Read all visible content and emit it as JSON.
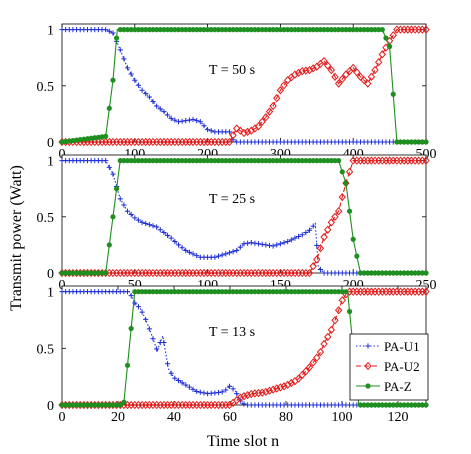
{
  "figure": {
    "ylabel": "Transmit power (Watt)",
    "xlabel": "Time slot n",
    "colors": {
      "PA-U1": "#1f2fd6",
      "PA-U2": "#e31a1a",
      "PA-Z": "#1f8f1f"
    }
  },
  "chart_data": [
    {
      "type": "line",
      "annotation": "T = 50 s",
      "xlim": [
        0,
        500
      ],
      "ylim": [
        0,
        1.05
      ],
      "xticks": [
        "0",
        "100",
        "200",
        "300",
        "400",
        "500"
      ],
      "yticks": [
        "0",
        "0.5",
        "1"
      ],
      "grid": false,
      "series": [
        {
          "name": "PA-U1",
          "color": "#1f2fd6",
          "marker": "plus",
          "dash": "dotted",
          "x": [
            0,
            60,
            70,
            80,
            90,
            100,
            110,
            120,
            130,
            140,
            150,
            160,
            170,
            180,
            190,
            200,
            210,
            230,
            235,
            240,
            300,
            400,
            500
          ],
          "y": [
            1,
            1,
            0.97,
            0.82,
            0.66,
            0.55,
            0.46,
            0.4,
            0.32,
            0.27,
            0.21,
            0.18,
            0.19,
            0.2,
            0.18,
            0.11,
            0.09,
            0.09,
            0.02,
            0,
            0,
            0,
            0
          ]
        },
        {
          "name": "PA-U2",
          "color": "#e31a1a",
          "marker": "diamond",
          "dash": "dashed",
          "x": [
            0,
            230,
            240,
            250,
            260,
            270,
            280,
            290,
            300,
            310,
            320,
            330,
            340,
            350,
            360,
            370,
            380,
            390,
            400,
            410,
            420,
            430,
            440,
            450,
            460,
            500
          ],
          "y": [
            0,
            0,
            0.12,
            0.08,
            0.1,
            0.14,
            0.22,
            0.32,
            0.46,
            0.55,
            0.6,
            0.63,
            0.64,
            0.67,
            0.72,
            0.64,
            0.52,
            0.6,
            0.66,
            0.58,
            0.52,
            0.64,
            0.78,
            0.9,
            1,
            1
          ]
        },
        {
          "name": "PA-Z",
          "color": "#1f8f1f",
          "marker": "circle",
          "dash": "solid",
          "x": [
            0,
            60,
            70,
            76,
            100,
            200,
            300,
            400,
            440,
            450,
            460,
            500
          ],
          "y": [
            0,
            0.05,
            0.55,
            1,
            1,
            1,
            1,
            1,
            1,
            0.85,
            0,
            0
          ]
        }
      ]
    },
    {
      "type": "line",
      "annotation": "T = 25 s",
      "xlim": [
        0,
        250
      ],
      "ylim": [
        0,
        1.05
      ],
      "xticks": [
        "0",
        "50",
        "100",
        "150",
        "200",
        "250"
      ],
      "yticks": [
        "0",
        "0.5",
        "1"
      ],
      "grid": false,
      "series": [
        {
          "name": "PA-U1",
          "color": "#1f2fd6",
          "marker": "plus",
          "dash": "dotted",
          "x": [
            0,
            30,
            35,
            40,
            45,
            50,
            55,
            60,
            65,
            70,
            75,
            80,
            85,
            90,
            95,
            100,
            105,
            110,
            115,
            120,
            125,
            130,
            135,
            140,
            145,
            150,
            155,
            160,
            165,
            170,
            174,
            176,
            180,
            200,
            250
          ],
          "y": [
            1,
            1,
            0.88,
            0.66,
            0.55,
            0.49,
            0.45,
            0.43,
            0.41,
            0.36,
            0.31,
            0.25,
            0.2,
            0.17,
            0.14,
            0.14,
            0.14,
            0.16,
            0.18,
            0.2,
            0.26,
            0.27,
            0.26,
            0.25,
            0.24,
            0.26,
            0.28,
            0.31,
            0.34,
            0.38,
            0.44,
            0.05,
            0,
            0,
            0
          ]
        },
        {
          "name": "PA-U2",
          "color": "#e31a1a",
          "marker": "diamond",
          "dash": "dashed",
          "x": [
            0,
            170,
            175,
            180,
            185,
            190,
            195,
            200,
            250
          ],
          "y": [
            0,
            0,
            0.12,
            0.32,
            0.45,
            0.55,
            0.8,
            1,
            1
          ]
        },
        {
          "name": "PA-Z",
          "color": "#1f8f1f",
          "marker": "circle",
          "dash": "solid",
          "x": [
            0,
            30,
            35,
            40,
            50,
            100,
            150,
            190,
            195,
            200,
            205,
            250
          ],
          "y": [
            0,
            0,
            0.5,
            1,
            1,
            1,
            1,
            1,
            0.8,
            0.3,
            0,
            0
          ]
        }
      ]
    },
    {
      "type": "line",
      "annotation": "T = 13 s",
      "xlim": [
        0,
        130
      ],
      "ylim": [
        0,
        1.05
      ],
      "xticks": [
        "0",
        "20",
        "40",
        "60",
        "80",
        "100",
        "120"
      ],
      "yticks": [
        "0",
        "0.5",
        "1"
      ],
      "grid": false,
      "legend": {
        "position": "right",
        "entries": [
          "PA-U1",
          "PA-U2",
          "PA-Z"
        ]
      },
      "series": [
        {
          "name": "PA-U1",
          "color": "#1f2fd6",
          "marker": "plus",
          "dash": "dotted",
          "x": [
            0,
            24,
            26,
            28,
            30,
            32,
            34,
            36,
            38,
            40,
            44,
            48,
            52,
            56,
            58,
            60,
            62,
            64,
            66,
            70,
            100,
            130
          ],
          "y": [
            1,
            1,
            0.9,
            0.85,
            0.75,
            0.62,
            0.48,
            0.61,
            0.32,
            0.24,
            0.18,
            0.12,
            0.1,
            0.11,
            0.12,
            0.17,
            0.12,
            0.02,
            0,
            0,
            0,
            0
          ]
        },
        {
          "name": "PA-U2",
          "color": "#e31a1a",
          "marker": "diamond",
          "dash": "dashed",
          "x": [
            0,
            60,
            64,
            68,
            72,
            76,
            80,
            84,
            88,
            92,
            94,
            96,
            98,
            100,
            102,
            104,
            130
          ],
          "y": [
            0,
            0,
            0.07,
            0.1,
            0.11,
            0.14,
            0.17,
            0.22,
            0.32,
            0.45,
            0.56,
            0.65,
            0.78,
            0.92,
            1,
            1,
            1
          ]
        },
        {
          "name": "PA-Z",
          "color": "#1f8f1f",
          "marker": "circle",
          "dash": "solid",
          "x": [
            0,
            22,
            26,
            30,
            60,
            100,
            102,
            104,
            106,
            130
          ],
          "y": [
            0,
            0,
            1,
            1,
            1,
            1,
            1,
            0.5,
            0,
            0
          ]
        }
      ]
    }
  ]
}
